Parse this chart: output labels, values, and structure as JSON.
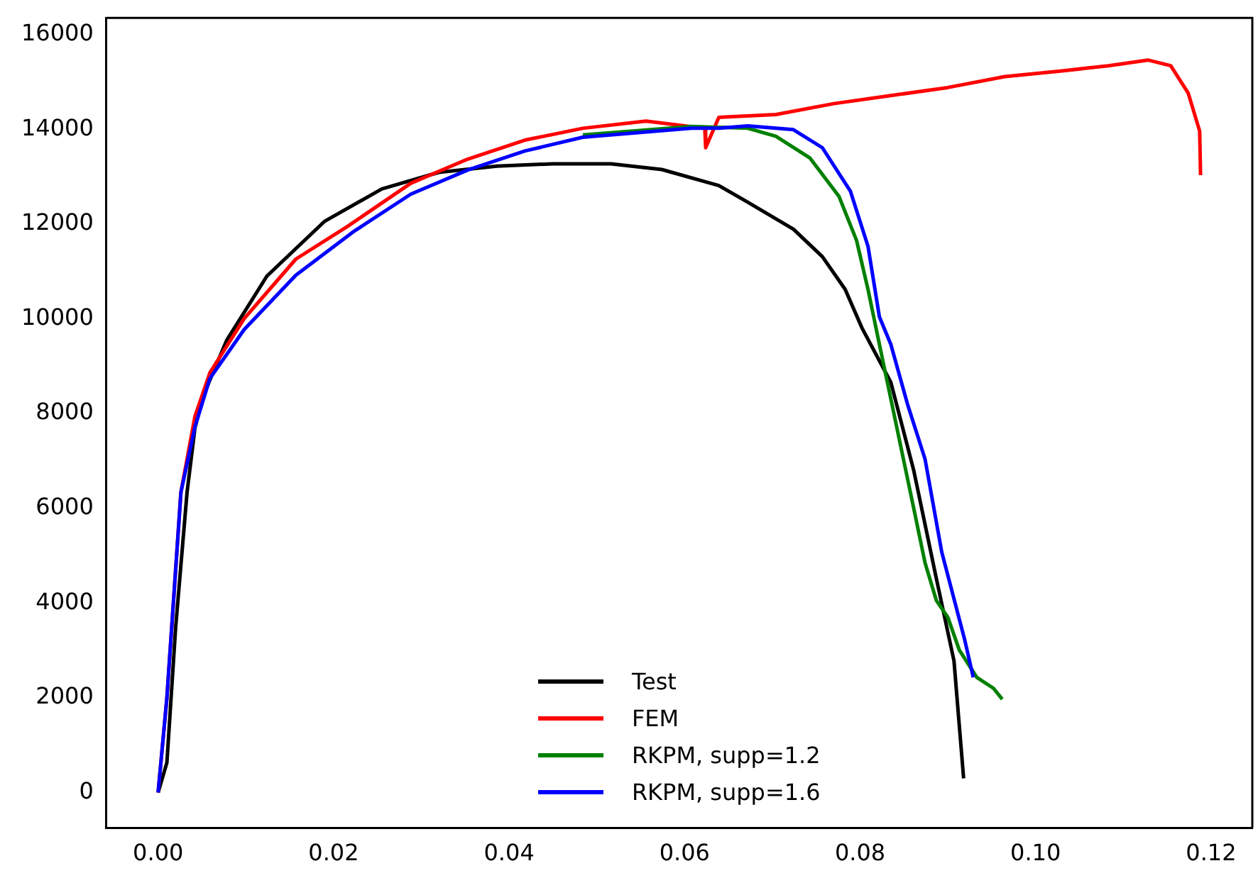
{
  "chart_data": {
    "type": "line",
    "legend": "bottom",
    "marker": "none",
    "line_style": "solid",
    "grid": false,
    "xlim": [
      -0.0059,
      0.1247
    ],
    "ylim": [
      -750,
      16350
    ],
    "xticks": [
      {
        "value": 0,
        "label": "0.00"
      },
      {
        "value": 0.02,
        "label": "0.02"
      },
      {
        "value": 0.04,
        "label": "0.04"
      },
      {
        "value": 0.06,
        "label": "0.06"
      },
      {
        "value": 0.08,
        "label": "0.08"
      },
      {
        "value": 0.1,
        "label": "0.10"
      },
      {
        "value": 0.12,
        "label": "0.12"
      }
    ],
    "yticks": [
      0,
      2000,
      4000,
      6000,
      8000,
      10000,
      12000,
      14000,
      16000
    ],
    "series": [
      {
        "name": "Test",
        "color": "#000000",
        "x": [
          0,
          0.001,
          0.002,
          0.0033,
          0.0042,
          0.0052,
          0.0078,
          0.0124,
          0.019,
          0.0255,
          0.032,
          0.0386,
          0.045,
          0.0516,
          0.0574,
          0.0639,
          0.0672,
          0.0724,
          0.0757,
          0.0783,
          0.0802,
          0.0835,
          0.0861,
          0.0887,
          0.0907,
          0.0918
        ],
        "values": [
          0,
          630,
          3490,
          6340,
          7700,
          8400,
          9540,
          10900,
          12060,
          12740,
          13090,
          13220,
          13270,
          13270,
          13150,
          12810,
          12460,
          11890,
          11310,
          10620,
          9810,
          8660,
          6810,
          4510,
          2780,
          300
        ]
      },
      {
        "name": "FEM",
        "color": "#ff0000",
        "x": [
          0,
          0.001,
          0.0026,
          0.0042,
          0.0059,
          0.0098,
          0.0157,
          0.0216,
          0.0288,
          0.0353,
          0.0418,
          0.0484,
          0.0556,
          0.0623,
          0.0624,
          0.0639,
          0.0704,
          0.077,
          0.0835,
          0.09,
          0.0965,
          0.103,
          0.1083,
          0.1128,
          0.1154,
          0.1174,
          0.1187,
          0.1188
        ],
        "values": [
          0,
          2000,
          6340,
          7940,
          8860,
          10000,
          11260,
          11950,
          12860,
          13370,
          13770,
          14020,
          14170,
          14020,
          13610,
          14250,
          14310,
          14540,
          14710,
          14880,
          15110,
          15230,
          15340,
          15460,
          15340,
          14760,
          13960,
          13030
        ]
      },
      {
        "name": "RKPM, supp=1.2",
        "color": "#008000",
        "x": [
          0.0484,
          0.0608,
          0.0672,
          0.0704,
          0.0743,
          0.0776,
          0.0796,
          0.0809,
          0.0822,
          0.0835,
          0.0848,
          0.0861,
          0.0874,
          0.0887,
          0.09,
          0.0913,
          0.0933,
          0.0952,
          0.0962
        ],
        "values": [
          13880,
          14060,
          14020,
          13850,
          13390,
          12580,
          11650,
          10620,
          9460,
          8310,
          7160,
          6010,
          4850,
          4050,
          3700,
          3010,
          2430,
          2200,
          1970
        ]
      },
      {
        "name": "RKPM, supp=1.6",
        "color": "#0000ff",
        "x": [
          0,
          0.001,
          0.0026,
          0.0042,
          0.0059,
          0.0098,
          0.0157,
          0.0222,
          0.0288,
          0.0353,
          0.0418,
          0.0484,
          0.0608,
          0.0639,
          0.0672,
          0.0724,
          0.0757,
          0.0789,
          0.0809,
          0.0822,
          0.0835,
          0.0854,
          0.0874,
          0.0893,
          0.0906,
          0.0919,
          0.0929
        ],
        "values": [
          0,
          2000,
          6340,
          7720,
          8740,
          9770,
          10920,
          11830,
          12630,
          13140,
          13540,
          13830,
          14020,
          14020,
          14070,
          13990,
          13610,
          12690,
          11530,
          10040,
          9460,
          8200,
          7040,
          5080,
          4160,
          3240,
          2430
        ]
      }
    ]
  }
}
